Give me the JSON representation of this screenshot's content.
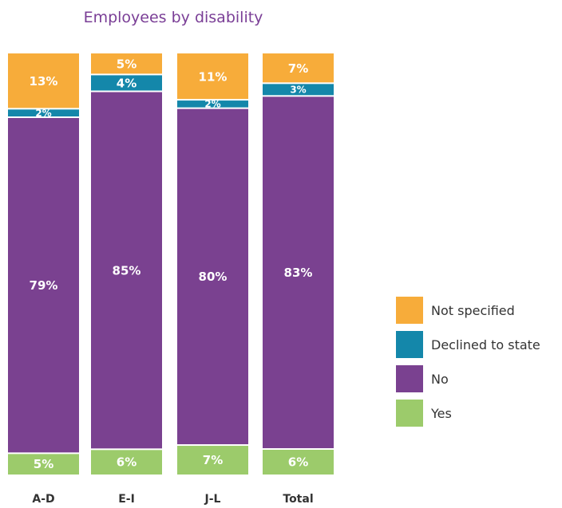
{
  "chart_data": {
    "type": "bar",
    "stacked": true,
    "title": "Employees by disability",
    "categories": [
      "A-D",
      "E-I",
      "J-L",
      "Total"
    ],
    "series": [
      {
        "name": "Yes",
        "values": [
          5,
          6,
          7,
          6
        ],
        "labels": [
          "5%",
          "6%",
          "7%",
          "6%"
        ],
        "color": "#9ccb6b"
      },
      {
        "name": "No",
        "values": [
          79,
          85,
          80,
          83
        ],
        "labels": [
          "79%",
          "85%",
          "80%",
          "83%"
        ],
        "color": "#7a4190"
      },
      {
        "name": "Declined to state",
        "values": [
          2,
          4,
          2,
          3
        ],
        "labels": [
          "2%",
          "4%",
          "2%",
          "3%"
        ],
        "color": "#1487aa"
      },
      {
        "name": "Not specified",
        "values": [
          13,
          5,
          11,
          7
        ],
        "labels": [
          "13%",
          "5%",
          "11%",
          "7%"
        ],
        "color": "#f7ac3a"
      }
    ],
    "legend": {
      "position": "right",
      "order": [
        "Not specified",
        "Declined to state",
        "No",
        "Yes"
      ]
    },
    "ylim": [
      0,
      100
    ],
    "grid": false
  }
}
